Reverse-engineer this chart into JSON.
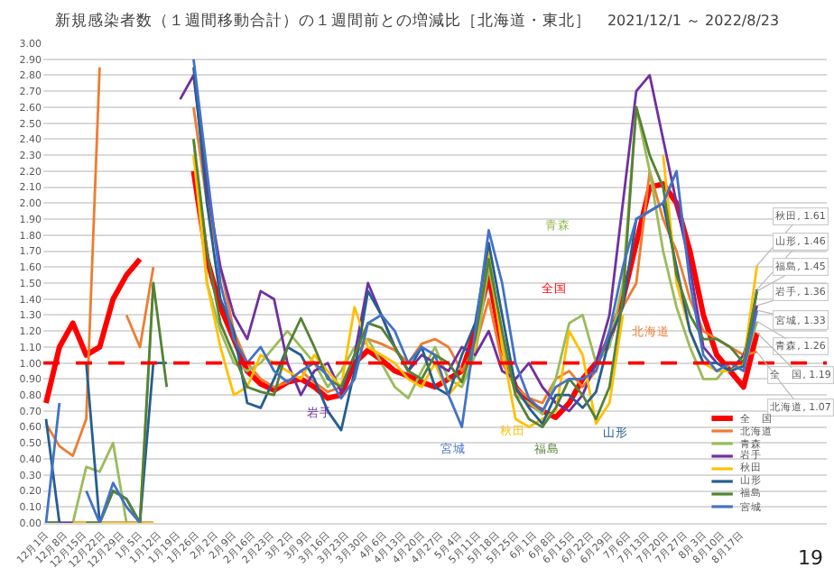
{
  "chart_data": {
    "type": "line",
    "title": "新規感染者数（１週間移動合計）の１週間前との増減比［北海道・東北］",
    "subtitle": "2021/12/1 ～ 2022/8/23",
    "x": [
      "2021-12-01",
      "2021-12-06",
      "2021-12-11",
      "2021-12-16",
      "2021-12-21",
      "2021-12-26",
      "2021-12-31",
      "2022-01-05",
      "2022-01-10",
      "2022-01-15",
      "2022-01-20",
      "2022-01-25",
      "2022-01-30",
      "2022-02-04",
      "2022-02-09",
      "2022-02-14",
      "2022-02-19",
      "2022-02-24",
      "2022-03-01",
      "2022-03-06",
      "2022-03-11",
      "2022-03-16",
      "2022-03-21",
      "2022-03-26",
      "2022-03-31",
      "2022-04-05",
      "2022-04-10",
      "2022-04-15",
      "2022-04-20",
      "2022-04-25",
      "2022-04-30",
      "2022-05-05",
      "2022-05-10",
      "2022-05-15",
      "2022-05-20",
      "2022-05-25",
      "2022-05-30",
      "2022-06-04",
      "2022-06-09",
      "2022-06-14",
      "2022-06-19",
      "2022-06-24",
      "2022-06-29",
      "2022-07-04",
      "2022-07-09",
      "2022-07-14",
      "2022-07-19",
      "2022-07-24",
      "2022-07-29",
      "2022-08-03",
      "2022-08-08",
      "2022-08-13",
      "2022-08-18",
      "2022-08-23"
    ],
    "series": [
      {
        "name": "全　国",
        "color": "#ff0000",
        "values": [
          0.75,
          1.1,
          1.25,
          1.05,
          1.1,
          1.4,
          1.55,
          1.65,
          null,
          null,
          null,
          2.2,
          1.65,
          1.35,
          1.15,
          0.95,
          0.87,
          0.83,
          0.88,
          0.9,
          0.85,
          0.78,
          0.8,
          1.0,
          1.08,
          1.02,
          0.95,
          0.92,
          0.88,
          0.85,
          0.9,
          0.95,
          1.2,
          1.55,
          1.1,
          0.85,
          0.75,
          0.7,
          0.66,
          0.75,
          0.9,
          1.0,
          1.15,
          1.4,
          1.75,
          2.1,
          2.12,
          2.0,
          1.7,
          1.3,
          1.05,
          0.95,
          0.85,
          1.19
        ]
      },
      {
        "name": "北海道",
        "color": "#ed7d31",
        "values": [
          0.62,
          0.48,
          0.42,
          0.65,
          2.85,
          null,
          1.3,
          1.1,
          1.6,
          null,
          null,
          2.6,
          2.0,
          1.6,
          1.2,
          1.0,
          0.9,
          0.85,
          0.88,
          0.95,
          0.88,
          0.82,
          0.85,
          1.05,
          1.15,
          1.12,
          1.08,
          1.0,
          1.12,
          1.15,
          1.1,
          0.95,
          1.1,
          1.4,
          1.0,
          0.85,
          0.78,
          0.75,
          0.9,
          0.95,
          0.85,
          0.95,
          1.2,
          1.35,
          1.5,
          2.2,
          1.9,
          1.7,
          1.4,
          1.2,
          1.15,
          1.1,
          1.05,
          1.07
        ]
      },
      {
        "name": "青森",
        "color": "#9bbb59",
        "values": [
          0,
          0,
          0,
          0.35,
          0.32,
          0.5,
          0,
          0,
          1.5,
          null,
          null,
          2.4,
          1.5,
          1.2,
          1.0,
          0.95,
          1.0,
          1.1,
          1.2,
          1.1,
          1.0,
          0.85,
          0.95,
          1.1,
          1.15,
          1.0,
          0.85,
          0.78,
          0.95,
          1.1,
          0.9,
          0.85,
          1.05,
          1.6,
          1.15,
          0.8,
          0.75,
          0.68,
          0.9,
          1.25,
          1.3,
          1.0,
          1.1,
          1.5,
          2.6,
          2.2,
          1.7,
          1.35,
          1.1,
          0.9,
          0.9,
          1.0,
          0.98,
          1.26
        ]
      },
      {
        "name": "岩手",
        "color": "#7030a0",
        "values": [
          0,
          0,
          0,
          0,
          0,
          0,
          0,
          0,
          0,
          null,
          2.65,
          2.8,
          2.1,
          1.6,
          1.3,
          1.15,
          1.45,
          1.4,
          1.0,
          0.8,
          0.95,
          1.0,
          0.82,
          1.05,
          1.5,
          1.3,
          1.1,
          0.95,
          1.05,
          1.0,
          0.95,
          1.1,
          1.05,
          1.2,
          0.95,
          0.9,
          1.0,
          0.85,
          0.75,
          0.7,
          0.8,
          1.0,
          1.3,
          2.0,
          2.7,
          2.8,
          2.4,
          2.0,
          1.6,
          1.1,
          1.0,
          0.95,
          1.05,
          1.36
        ]
      },
      {
        "name": "秋田",
        "color": "#ffc000",
        "values": [
          null,
          null,
          0,
          0,
          0,
          0,
          0,
          0,
          0,
          null,
          null,
          2.3,
          1.5,
          1.1,
          0.8,
          0.85,
          1.05,
          1.0,
          0.95,
          0.9,
          1.05,
          0.95,
          0.85,
          1.35,
          1.1,
          1.05,
          1.0,
          0.9,
          0.85,
          1.0,
          0.8,
          0.9,
          1.1,
          1.7,
          1.1,
          0.65,
          0.6,
          0.65,
          0.7,
          1.2,
          1.05,
          0.62,
          0.75,
          1.3,
          null,
          null,
          2.3,
          1.5,
          1.2,
          1.0,
          0.95,
          0.95,
          1.0,
          1.61
        ]
      },
      {
        "name": "山形",
        "color": "#255e91",
        "values": [
          0.65,
          0,
          null,
          1.0,
          0,
          0.2,
          0.15,
          0,
          1.0,
          1.0,
          null,
          2.85,
          2.0,
          1.4,
          1.2,
          0.75,
          0.72,
          0.9,
          1.1,
          1.05,
          0.9,
          0.7,
          0.58,
          0.95,
          1.45,
          1.3,
          1.1,
          0.95,
          1.1,
          0.85,
          0.8,
          1.05,
          1.25,
          1.75,
          1.3,
          0.85,
          0.72,
          0.62,
          0.8,
          0.8,
          0.72,
          0.82,
          1.15,
          1.35,
          1.9,
          1.95,
          2.0,
          1.6,
          1.2,
          1.0,
          1.0,
          0.95,
          0.98,
          1.46
        ]
      },
      {
        "name": "福島",
        "color": "#548235",
        "values": [
          0,
          0,
          null,
          0,
          0,
          0.2,
          0.15,
          0,
          1.5,
          0.85,
          null,
          2.4,
          1.7,
          1.25,
          1.05,
          0.85,
          0.82,
          0.8,
          1.1,
          1.28,
          1.1,
          0.9,
          0.85,
          1.05,
          1.25,
          1.22,
          1.1,
          0.95,
          0.9,
          1.05,
          1.0,
          0.88,
          1.15,
          1.65,
          1.2,
          0.8,
          0.65,
          0.6,
          0.72,
          0.9,
          0.8,
          0.65,
          0.85,
          1.4,
          2.6,
          2.3,
          2.1,
          1.55,
          1.3,
          1.15,
          1.15,
          1.1,
          1.0,
          1.45
        ]
      },
      {
        "name": "宮城",
        "color": "#4472c4",
        "values": [
          0,
          0.75,
          null,
          0.2,
          0,
          0.25,
          0.1,
          0,
          null,
          null,
          null,
          2.9,
          2.2,
          1.5,
          1.15,
          1.0,
          1.1,
          0.95,
          0.88,
          0.95,
          1.0,
          0.92,
          0.78,
          0.9,
          1.25,
          1.3,
          1.2,
          1.0,
          1.1,
          1.05,
          0.8,
          0.6,
          1.2,
          1.83,
          1.5,
          1.0,
          0.78,
          0.7,
          0.85,
          0.9,
          0.9,
          0.95,
          1.2,
          1.6,
          1.9,
          1.95,
          2.0,
          2.2,
          1.5,
          1.05,
          0.95,
          1.0,
          0.95,
          1.33
        ]
      }
    ],
    "xlim": [
      "2021-11-30",
      "2022-09-18"
    ],
    "xticks": [
      {
        "value": "2021-12-01",
        "label": "12月1日"
      },
      {
        "value": "2021-12-08",
        "label": "12月8日"
      },
      {
        "value": "2021-12-15",
        "label": "12月15日"
      },
      {
        "value": "2021-12-22",
        "label": "12月22日"
      },
      {
        "value": "2021-12-29",
        "label": "12月29日"
      },
      {
        "value": "2022-01-05",
        "label": "1月5日"
      },
      {
        "value": "2022-01-12",
        "label": "1月12日"
      },
      {
        "value": "2022-01-19",
        "label": "1月19日"
      },
      {
        "value": "2022-01-26",
        "label": "1月26日"
      },
      {
        "value": "2022-02-02",
        "label": "2月2日"
      },
      {
        "value": "2022-02-09",
        "label": "2月9日"
      },
      {
        "value": "2022-02-16",
        "label": "2月16日"
      },
      {
        "value": "2022-02-23",
        "label": "2月23日"
      },
      {
        "value": "2022-03-02",
        "label": "3月2日"
      },
      {
        "value": "2022-03-09",
        "label": "3月9日"
      },
      {
        "value": "2022-03-16",
        "label": "3月16日"
      },
      {
        "value": "2022-03-23",
        "label": "3月23日"
      },
      {
        "value": "2022-03-30",
        "label": "3月30日"
      },
      {
        "value": "2022-04-06",
        "label": "4月6日"
      },
      {
        "value": "2022-04-13",
        "label": "4月13日"
      },
      {
        "value": "2022-04-20",
        "label": "4月20日"
      },
      {
        "value": "2022-04-27",
        "label": "4月27日"
      },
      {
        "value": "2022-05-04",
        "label": "5月4日"
      },
      {
        "value": "2022-05-11",
        "label": "5月11日"
      },
      {
        "value": "2022-05-18",
        "label": "5月18日"
      },
      {
        "value": "2022-05-25",
        "label": "5月25日"
      },
      {
        "value": "2022-06-01",
        "label": "6月1日"
      },
      {
        "value": "2022-06-08",
        "label": "6月8日"
      },
      {
        "value": "2022-06-15",
        "label": "6月15日"
      },
      {
        "value": "2022-06-22",
        "label": "6月22日"
      },
      {
        "value": "2022-06-29",
        "label": "6月29日"
      },
      {
        "value": "2022-07-06",
        "label": "7月6日"
      },
      {
        "value": "2022-07-13",
        "label": "7月13日"
      },
      {
        "value": "2022-07-20",
        "label": "7月20日"
      },
      {
        "value": "2022-07-27",
        "label": "7月27日"
      },
      {
        "value": "2022-08-03",
        "label": "8月3日"
      },
      {
        "value": "2022-08-10",
        "label": "8月10日"
      },
      {
        "value": "2022-08-17",
        "label": "8月17日"
      }
    ],
    "ylim": [
      0,
      3
    ],
    "yticks": [
      {
        "value": 0,
        "label": "0.00"
      },
      {
        "value": 0.1,
        "label": "0.10"
      },
      {
        "value": 0.2,
        "label": "0.20"
      },
      {
        "value": 0.3,
        "label": "0.30"
      },
      {
        "value": 0.4,
        "label": "0.40"
      },
      {
        "value": 0.5,
        "label": "0.50"
      },
      {
        "value": 0.6,
        "label": "0.60"
      },
      {
        "value": 0.7,
        "label": "0.70"
      },
      {
        "value": 0.8,
        "label": "0.80"
      },
      {
        "value": 0.9,
        "label": "0.90"
      },
      {
        "value": 1,
        "label": "1.00"
      },
      {
        "value": 1.1,
        "label": "1.10"
      },
      {
        "value": 1.2,
        "label": "1.20"
      },
      {
        "value": 1.3,
        "label": "1.30"
      },
      {
        "value": 1.4,
        "label": "1.40"
      },
      {
        "value": 1.5,
        "label": "1.50"
      },
      {
        "value": 1.6,
        "label": "1.60"
      },
      {
        "value": 1.7,
        "label": "1.70"
      },
      {
        "value": 1.8,
        "label": "1.80"
      },
      {
        "value": 1.9,
        "label": "1.90"
      },
      {
        "value": 2,
        "label": "2.00"
      },
      {
        "value": 2.1,
        "label": "2.10"
      },
      {
        "value": 2.2,
        "label": "2.20"
      },
      {
        "value": 2.3,
        "label": "2.30"
      },
      {
        "value": 2.4,
        "label": "2.40"
      },
      {
        "value": 2.5,
        "label": "2.50"
      },
      {
        "value": 2.6,
        "label": "2.60"
      },
      {
        "value": 2.7,
        "label": "2.70"
      },
      {
        "value": 2.8,
        "label": "2.80"
      },
      {
        "value": 2.9,
        "label": "2.90"
      },
      {
        "value": 3,
        "label": "3.00"
      }
    ],
    "grid": "y",
    "legend": "bottom right",
    "ref_lines": [
      {
        "axis": "y",
        "value": 1,
        "color": "#ff0000",
        "line_style": "dashed"
      }
    ],
    "annotations": [
      "全国",
      "北海道",
      "青森",
      "岩手",
      "秋田",
      "山形",
      "福島",
      "宮城",
      {
        "text": "秋田, 1.61",
        "x": "2022-08-23",
        "y": 1.61
      },
      {
        "text": "山形, 1.46",
        "x": "2022-08-23",
        "y": 1.46
      },
      {
        "text": "福島, 1.45",
        "x": "2022-08-23",
        "y": 1.45
      },
      {
        "text": "岩手, 1.36",
        "x": "2022-08-23",
        "y": 1.36
      },
      {
        "text": "宮城, 1.33",
        "x": "2022-08-23",
        "y": 1.33
      },
      {
        "text": "青森, 1.26",
        "x": "2022-08-23",
        "y": 1.26
      },
      {
        "text": "全　国, 1.19",
        "x": "2022-08-23",
        "y": 1.19
      },
      {
        "text": "北海道, 1.07",
        "x": "2022-08-23",
        "y": 1.07
      },
      "19"
    ]
  }
}
